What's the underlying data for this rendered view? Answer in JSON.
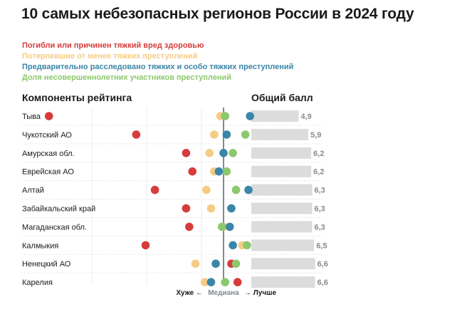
{
  "title": "10 самых небезопасных регионов России в 2024 году",
  "colors": {
    "deaths": "#d63c3c",
    "victims": "#f5cc85",
    "investigated": "#3a86a8",
    "minors": "#8cc86e",
    "median_line": "#7f8a93",
    "score_bar": "#dcdcdc",
    "score_text": "#8a8a8a"
  },
  "legend": [
    {
      "label": "Погибли или причинен тяжкий вред здоровью",
      "color": "#d63c3c"
    },
    {
      "label": "Потерпевшие от менее тяжких преступлений",
      "color": "#f5cc85"
    },
    {
      "label": "Предварительно расследовано тяжких и особо тяжких преступлений",
      "color": "#3a86a8"
    },
    {
      "label": "Доля несовершеннолетних участников преступлений",
      "color": "#8cc86e"
    }
  ],
  "headers": {
    "components": "Компоненты рейтинга",
    "score": "Общий балл"
  },
  "axis": {
    "worse": "Хуже ←",
    "median": "Медиана",
    "better": "→ Лучше"
  },
  "chart_data": {
    "type": "scatter",
    "title": "10 самых небезопасных регионов России в 2024 году",
    "note": "dot plot: component positions relative to median (0 = median, negative = worse, positive = better); score bar = overall score",
    "x_range": [
      -12,
      2.5
    ],
    "score_range": [
      0,
      7
    ],
    "series": [
      {
        "name": "Погибли или причинен тяжкий вред здоровью",
        "key": "deaths"
      },
      {
        "name": "Потерпевшие от менее тяжких преступлений",
        "key": "victims"
      },
      {
        "name": "Предварительно расследовано тяжких и особо тяжких преступлений",
        "key": "investigated"
      },
      {
        "name": "Доля несовершеннолетних участников преступлений",
        "key": "minors"
      }
    ],
    "regions": [
      {
        "name": "Тыва",
        "deaths": -11.2,
        "victims": -0.2,
        "investigated": 1.7,
        "minors": 0.1,
        "score": 4.9
      },
      {
        "name": "Чукотский АО",
        "deaths": -5.6,
        "victims": -0.6,
        "investigated": 0.2,
        "minors": 1.4,
        "score": 5.9
      },
      {
        "name": "Амурская обл.",
        "deaths": -2.4,
        "victims": -0.9,
        "investigated": 0.0,
        "minors": 0.6,
        "score": 6.2
      },
      {
        "name": "Еврейская АО",
        "deaths": -2.0,
        "victims": -0.6,
        "investigated": -0.3,
        "minors": 0.2,
        "score": 6.2
      },
      {
        "name": "Алтай",
        "deaths": -4.4,
        "victims": -1.1,
        "investigated": 1.6,
        "minors": 0.8,
        "score": 6.3
      },
      {
        "name": "Забайкальский край",
        "deaths": -2.4,
        "victims": -0.8,
        "investigated": 0.5,
        "minors": 0.5,
        "score": 6.3
      },
      {
        "name": "Магаданская обл.",
        "deaths": -2.2,
        "victims": 0.0,
        "investigated": 0.4,
        "minors": -0.1,
        "score": 6.3
      },
      {
        "name": "Калмыкия",
        "deaths": -5.0,
        "victims": 1.2,
        "investigated": 0.6,
        "minors": 1.5,
        "score": 6.5
      },
      {
        "name": "Ненецкий АО",
        "deaths": 0.5,
        "victims": -1.8,
        "investigated": -0.5,
        "minors": 0.8,
        "score": 6.6
      },
      {
        "name": "Карелия",
        "deaths": 0.9,
        "victims": -1.2,
        "investigated": -0.8,
        "minors": 0.1,
        "score": 6.6
      }
    ]
  }
}
